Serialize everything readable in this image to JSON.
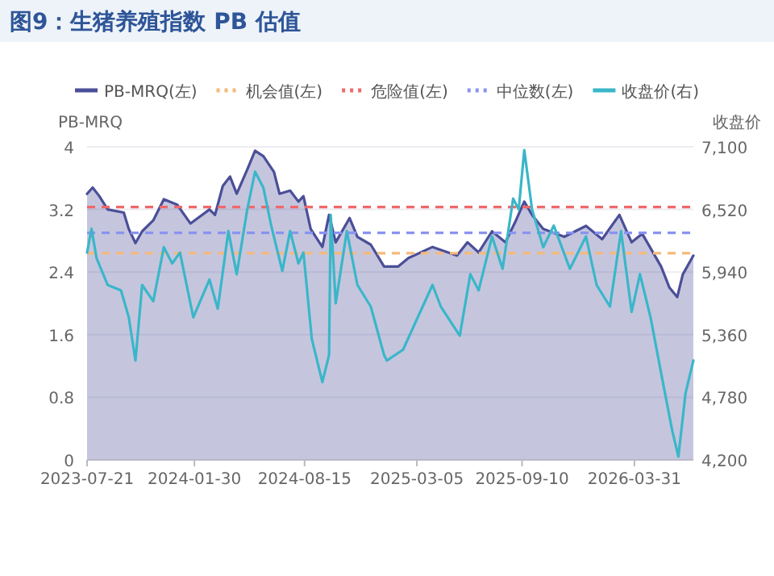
{
  "chart_data": {
    "type": "line",
    "title": "图9：生猪养殖指数 PB 估值",
    "ylabel": "PB-MRQ",
    "y2label": "收盘价",
    "xlim": [
      "2023-07-21",
      "2026-07-15"
    ],
    "xticks": [
      "2023-07-21",
      "2024-01-30",
      "2024-08-15",
      "2025-03-05",
      "2025-09-10",
      "2026-03-31"
    ],
    "ylim": [
      0,
      4
    ],
    "yticks": [
      0,
      0.8,
      1.6,
      2.4,
      3.2,
      4
    ],
    "y2lim": [
      4200,
      7100
    ],
    "y2ticks": [
      {
        "value": 4200,
        "label": "4,200"
      },
      {
        "value": 4780,
        "label": "4,780"
      },
      {
        "value": 5360,
        "label": "5,360"
      },
      {
        "value": 5940,
        "label": "5,940"
      },
      {
        "value": 6520,
        "label": "6,520"
      },
      {
        "value": 7100,
        "label": "7,100"
      }
    ],
    "grid": "y",
    "legend": "top",
    "series": [
      {
        "name": "PB-MRQ(左)",
        "type": "area",
        "color": "#4b4f98",
        "x": [
          "2023-07-21",
          "2023-07-31",
          "2023-08-12",
          "2023-08-27",
          "2023-09-25",
          "2023-10-04",
          "2023-10-16",
          "2023-10-28",
          "2023-11-17",
          "2023-12-06",
          "2023-12-30",
          "2024-01-23",
          "2024-02-26",
          "2024-03-07",
          "2024-03-21",
          "2024-04-03",
          "2024-04-15",
          "2024-05-04",
          "2024-05-18",
          "2024-06-02",
          "2024-06-21",
          "2024-07-01",
          "2024-07-20",
          "2024-08-04",
          "2024-08-13",
          "2024-08-26",
          "2024-09-16",
          "2024-09-28",
          "2024-10-10",
          "2024-11-04",
          "2024-11-18",
          "2024-12-12",
          "2025-01-05",
          "2025-01-30",
          "2025-02-18",
          "2025-04-02",
          "2025-05-16",
          "2025-06-04",
          "2025-06-24",
          "2025-07-18",
          "2025-08-11",
          "2025-08-30",
          "2025-09-14",
          "2025-09-28",
          "2025-10-18",
          "2025-11-25",
          "2026-01-03",
          "2026-02-01",
          "2026-03-04",
          "2026-03-26",
          "2026-04-14",
          "2026-05-18",
          "2026-06-02",
          "2026-06-16",
          "2026-06-26",
          "2026-07-15"
        ],
        "values": [
          3.4,
          3.48,
          3.37,
          3.2,
          3.16,
          2.95,
          2.77,
          2.92,
          3.06,
          3.33,
          3.26,
          3.02,
          3.2,
          3.13,
          3.5,
          3.62,
          3.4,
          3.71,
          3.95,
          3.88,
          3.68,
          3.4,
          3.44,
          3.3,
          3.37,
          2.95,
          2.72,
          3.13,
          2.78,
          3.09,
          2.85,
          2.75,
          2.47,
          2.47,
          2.58,
          2.72,
          2.61,
          2.78,
          2.65,
          2.92,
          2.78,
          3.06,
          3.3,
          3.13,
          2.95,
          2.85,
          2.99,
          2.82,
          3.13,
          2.78,
          2.89,
          2.47,
          2.2,
          2.08,
          2.37,
          2.61
        ]
      },
      {
        "name": "收盘价(右)",
        "axis": "y2",
        "color": "#3bb6c9",
        "x": [
          "2023-07-21",
          "2023-07-29",
          "2023-08-07",
          "2023-08-27",
          "2023-09-20",
          "2023-10-04",
          "2023-10-16",
          "2023-10-28",
          "2023-11-17",
          "2023-12-06",
          "2023-12-21",
          "2024-01-04",
          "2024-01-28",
          "2024-02-26",
          "2024-03-12",
          "2024-03-31",
          "2024-04-15",
          "2024-05-04",
          "2024-05-18",
          "2024-06-02",
          "2024-06-16",
          "2024-07-06",
          "2024-07-20",
          "2024-08-04",
          "2024-08-13",
          "2024-08-28",
          "2024-09-16",
          "2024-09-28",
          "2024-10-01",
          "2024-10-10",
          "2024-10-30",
          "2024-11-18",
          "2024-12-12",
          "2025-01-05",
          "2025-01-10",
          "2025-02-08",
          "2025-04-02",
          "2025-04-17",
          "2025-05-21",
          "2025-06-09",
          "2025-06-24",
          "2025-07-18",
          "2025-08-06",
          "2025-08-25",
          "2025-09-04",
          "2025-09-14",
          "2025-09-28",
          "2025-10-18",
          "2025-11-06",
          "2025-12-05",
          "2026-01-03",
          "2026-01-22",
          "2026-02-15",
          "2026-03-07",
          "2026-03-26",
          "2026-04-10",
          "2026-04-29",
          "2026-05-23",
          "2026-06-07",
          "2026-06-18",
          "2026-07-01",
          "2026-07-15"
        ],
        "values": [
          6120,
          6340,
          6070,
          5820,
          5770,
          5520,
          5120,
          5820,
          5670,
          6170,
          6020,
          6120,
          5520,
          5870,
          5600,
          6320,
          5920,
          6520,
          6870,
          6720,
          6370,
          5950,
          6320,
          6020,
          6120,
          5320,
          4920,
          5170,
          6470,
          5650,
          6320,
          5820,
          5620,
          5170,
          5120,
          5220,
          5820,
          5620,
          5350,
          5920,
          5770,
          6270,
          5970,
          6620,
          6520,
          7070,
          6520,
          6170,
          6370,
          5970,
          6270,
          5820,
          5620,
          6320,
          5570,
          5920,
          5520,
          4870,
          4470,
          4230,
          4820,
          5120
        ]
      }
    ],
    "ref_lines": [
      {
        "axis": "y",
        "value": 2.64,
        "label": "机会值(左)",
        "color": "#f5b97a",
        "line_style": "dashed"
      },
      {
        "axis": "y",
        "value": 3.23,
        "label": "危险值(左)",
        "color": "#f0686a",
        "line_style": "dashed"
      },
      {
        "axis": "y",
        "value": 2.9,
        "label": "中位数(左)",
        "color": "#8a93f0",
        "line_style": "dashed"
      }
    ]
  }
}
